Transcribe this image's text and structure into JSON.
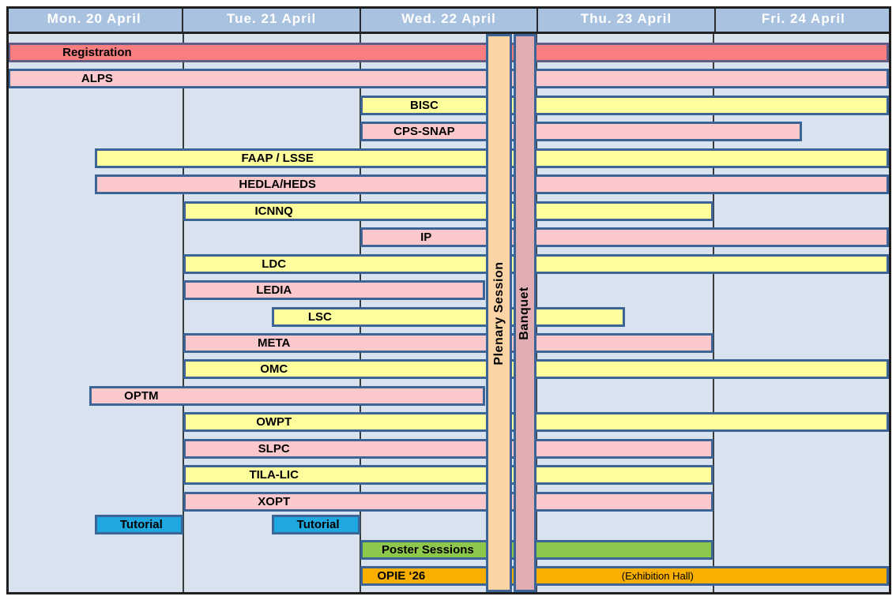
{
  "header": {
    "days": [
      "Mon. 20 April",
      "Tue. 21 April",
      "Wed. 22 April",
      "Thu. 23 April",
      "Fri. 24 April"
    ]
  },
  "chart_data": {
    "type": "bar",
    "variant": "gantt-conference-schedule",
    "x_axis": {
      "unit": "day",
      "categories": [
        "Mon. 20 April",
        "Tue. 21 April",
        "Wed. 22 April",
        "Thu. 23 April",
        "Fri. 24 April"
      ],
      "range": [
        0,
        5
      ]
    },
    "grid": "vertical-day-lines",
    "bars": [
      {
        "row": 0,
        "label": "Registration",
        "start": 0.0,
        "end": 5.0,
        "color": "red",
        "border": "#635C85",
        "label_day": 0.5
      },
      {
        "row": 1,
        "label": "ALPS",
        "start": 0.0,
        "end": 5.0,
        "color": "pink",
        "label_day": 0.5
      },
      {
        "row": 2,
        "label": "BISC",
        "start": 2.0,
        "end": 5.0,
        "color": "yellow",
        "label_day": 2.35
      },
      {
        "row": 3,
        "label": "CPS-SNAP",
        "start": 2.0,
        "end": 4.5,
        "color": "pink",
        "label_day": 2.35
      },
      {
        "row": 4,
        "label": "FAAP / LSSE",
        "start": 0.5,
        "end": 5.0,
        "color": "yellow",
        "label_day": 1.52
      },
      {
        "row": 5,
        "label": "HEDLA/HEDS",
        "start": 0.5,
        "end": 5.0,
        "color": "pink",
        "label_day": 1.52
      },
      {
        "row": 6,
        "label": "ICNNQ",
        "start": 1.0,
        "end": 4.0,
        "color": "yellow",
        "label_day": 1.5
      },
      {
        "row": 7,
        "label": "IP",
        "start": 2.0,
        "end": 5.0,
        "color": "pink",
        "label_day": 2.36
      },
      {
        "row": 8,
        "label": "LDC",
        "start": 1.0,
        "end": 5.0,
        "color": "yellow",
        "label_day": 1.5
      },
      {
        "row": 9,
        "label": "LEDIA",
        "start": 1.0,
        "end": 2.71,
        "color": "pink",
        "label_day": 1.5
      },
      {
        "row": 10,
        "label": "LSC",
        "start": 1.5,
        "end": 3.5,
        "color": "yellow",
        "label_day": 1.76
      },
      {
        "row": 11,
        "label": "META",
        "start": 1.0,
        "end": 4.0,
        "color": "pink",
        "label_day": 1.5
      },
      {
        "row": 12,
        "label": "OMC",
        "start": 1.0,
        "end": 5.0,
        "color": "yellow",
        "label_day": 1.5
      },
      {
        "row": 13,
        "label": "OPTM",
        "start": 0.47,
        "end": 2.71,
        "color": "pink",
        "label_day": 0.75
      },
      {
        "row": 14,
        "label": "OWPT",
        "start": 1.0,
        "end": 5.0,
        "color": "yellow",
        "label_day": 1.5
      },
      {
        "row": 15,
        "label": "SLPC",
        "start": 1.0,
        "end": 4.0,
        "color": "pink",
        "label_day": 1.5
      },
      {
        "row": 16,
        "label": "TILA-LIC",
        "start": 1.0,
        "end": 4.0,
        "color": "yellow",
        "label_day": 1.5
      },
      {
        "row": 17,
        "label": "XOPT",
        "start": 1.0,
        "end": 4.0,
        "color": "pink",
        "label_day": 1.5
      },
      {
        "row": 18,
        "label": "Tutorial",
        "start": 0.5,
        "end": 1.0,
        "color": "blue",
        "label_day": 0.75
      },
      {
        "row": 18,
        "label": "Tutorial",
        "start": 1.5,
        "end": 2.0,
        "color": "blue",
        "label_day": 1.75
      },
      {
        "row": 19,
        "label": "Poster Sessions",
        "start": 2.0,
        "end": 4.0,
        "color": "green",
        "label_day": 2.37
      },
      {
        "row": 20,
        "label": "OPIE ‘26",
        "start": 2.0,
        "end": 5.0,
        "color": "orange",
        "label_day": 2.22,
        "sub_label": "(Exhibition Hall)",
        "sub_label_day": 3.67
      }
    ],
    "vertical_sessions": [
      {
        "label": "Plenary Session",
        "start": 2.712,
        "end": 2.861,
        "color": "peach"
      },
      {
        "label": "Banquet",
        "start": 2.868,
        "end": 2.998,
        "color": "rose"
      }
    ],
    "colors": {
      "red": "#F87E80",
      "pink": "#FBC9CB",
      "yellow": "#FEFE9D",
      "blue": "#1FA7E0",
      "green": "#8DC74B",
      "orange": "#F9AF00",
      "peach": "#FBD4A6",
      "rose": "#E0ADB2",
      "background": "#D9E2EF",
      "header_background": "#A9C2DF",
      "header_text": "#FFFFFF",
      "bar_border": "#3D6496",
      "registration_border": "#635C85",
      "grid_line": "#3B3B3B",
      "outer_border": "#1F1F1F"
    }
  }
}
